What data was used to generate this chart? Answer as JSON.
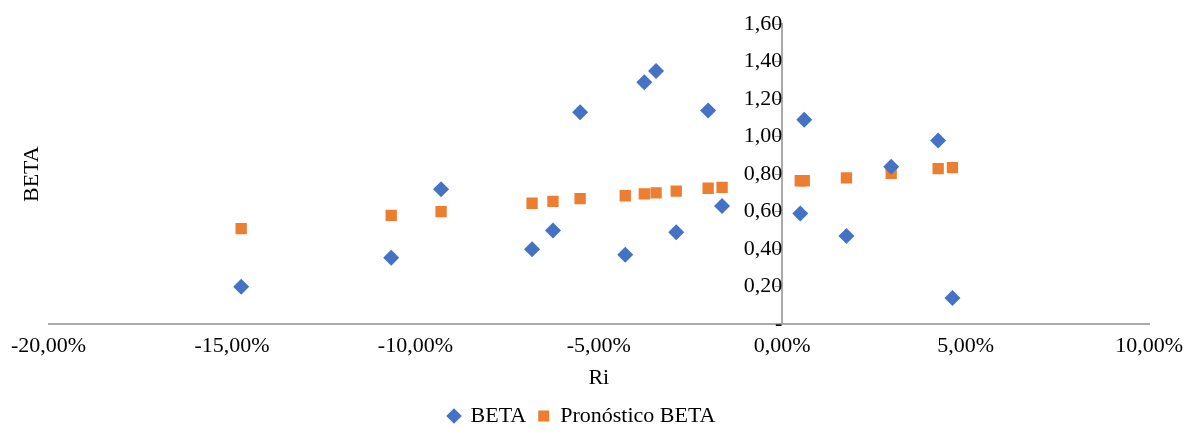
{
  "chart_data": {
    "type": "scatter",
    "xlabel": "Ri",
    "ylabel": "BETA",
    "legend": "bottom",
    "grid": false,
    "xlim": [
      -20,
      10
    ],
    "xticks": [
      {
        "value": -20,
        "label": "-20,00%"
      },
      {
        "value": -15,
        "label": "-15,00%"
      },
      {
        "value": -10,
        "label": "-10,00%"
      },
      {
        "value": -5,
        "label": "-5,00%"
      },
      {
        "value": 0,
        "label": "0,00%"
      },
      {
        "value": 5,
        "label": "5,00%"
      },
      {
        "value": 10,
        "label": "10,00%"
      }
    ],
    "ylim": [
      0,
      1.6
    ],
    "yticks": [
      {
        "value": 0,
        "label": "-"
      },
      {
        "value": 0.2,
        "label": "0,20"
      },
      {
        "value": 0.4,
        "label": "0,40"
      },
      {
        "value": 0.6,
        "label": "0,60"
      },
      {
        "value": 0.8,
        "label": "0,80"
      },
      {
        "value": 1,
        "label": "1,00"
      },
      {
        "value": 1.2,
        "label": "1,20"
      },
      {
        "value": 1.4,
        "label": "1,40"
      },
      {
        "value": 1.6,
        "label": "1,60"
      }
    ],
    "series": [
      {
        "name": "BETA",
        "color": "#4472c4",
        "marker": "diamond",
        "x": [
          -14.75,
          -10.66,
          -9.3,
          -6.82,
          -6.25,
          -5.51,
          -4.28,
          -3.76,
          -3.44,
          -2.89,
          -2.02,
          -1.64,
          0.49,
          0.6,
          1.75,
          2.97,
          4.25,
          4.64
        ],
        "values": [
          0.2,
          0.355,
          0.72,
          0.4,
          0.5,
          1.13,
          0.37,
          1.29,
          1.35,
          0.49,
          1.14,
          0.63,
          0.59,
          1.09,
          0.47,
          0.84,
          0.98,
          0.14
        ]
      },
      {
        "name": "Pronóstico BETA",
        "color": "#ed7d31",
        "marker": "square",
        "x": [
          -14.75,
          -10.66,
          -9.3,
          -6.82,
          -6.25,
          -5.51,
          -4.28,
          -3.76,
          -3.44,
          -2.89,
          -2.02,
          -1.64,
          0.49,
          0.6,
          1.75,
          2.97,
          4.25,
          4.64
        ],
        "values": [
          0.51,
          0.58,
          0.6,
          0.645,
          0.655,
          0.67,
          0.685,
          0.695,
          0.7,
          0.71,
          0.725,
          0.73,
          0.765,
          0.765,
          0.78,
          0.805,
          0.83,
          0.835
        ]
      }
    ]
  }
}
